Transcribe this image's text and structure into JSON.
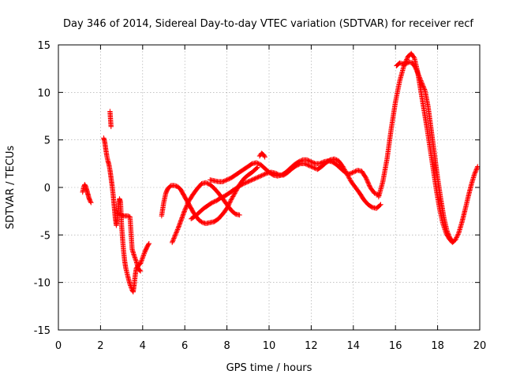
{
  "chart_data": {
    "type": "scatter",
    "title": "Day 346 of 2014, Sidereal Day-to-day VTEC variation (SDTVAR) for receiver recf",
    "xlabel": "GPS time / hours",
    "ylabel": "SDTVAR / TECUs",
    "xlim": [
      0,
      20
    ],
    "ylim": [
      -15,
      15
    ],
    "x_ticks": [
      0,
      2,
      4,
      6,
      8,
      10,
      12,
      14,
      16,
      18,
      20
    ],
    "y_ticks": [
      -15,
      -10,
      -5,
      0,
      5,
      10,
      15
    ],
    "x_tick_labels": [
      "0",
      "2",
      "4",
      "6",
      "8",
      "10",
      "12",
      "14",
      "16",
      "18",
      "20"
    ],
    "y_tick_labels": [
      "-15",
      "-10",
      "-5",
      "0",
      "5",
      "10",
      "15"
    ],
    "grid": true,
    "marker": "plus",
    "color": "#ff0000",
    "series": [
      {
        "name": "s1",
        "points": [
          [
            1.15,
            -0.5
          ],
          [
            1.2,
            0.0
          ],
          [
            1.25,
            0.3
          ],
          [
            1.3,
            0.1
          ],
          [
            1.35,
            -0.3
          ],
          [
            1.4,
            -0.7
          ],
          [
            1.45,
            -1.1
          ],
          [
            1.5,
            -1.4
          ],
          [
            1.55,
            -1.6
          ]
        ]
      },
      {
        "name": "s2",
        "points": [
          [
            2.15,
            5.2
          ],
          [
            2.2,
            4.8
          ],
          [
            2.25,
            4.0
          ],
          [
            2.3,
            3.3
          ],
          [
            2.35,
            2.8
          ],
          [
            2.4,
            2.4
          ],
          [
            2.45,
            1.8
          ],
          [
            2.5,
            1.0
          ],
          [
            2.55,
            0.2
          ],
          [
            2.6,
            -0.8
          ],
          [
            2.65,
            -2.0
          ],
          [
            2.7,
            -3.2
          ],
          [
            2.75,
            -4.0
          ],
          [
            2.8,
            -3.2
          ],
          [
            2.85,
            -1.8
          ],
          [
            2.9,
            -1.2
          ],
          [
            2.95,
            -1.5
          ],
          [
            3.0,
            -4.0
          ],
          [
            3.05,
            -5.5
          ],
          [
            3.1,
            -6.8
          ],
          [
            3.15,
            -7.8
          ],
          [
            3.2,
            -8.5
          ],
          [
            3.3,
            -9.4
          ],
          [
            3.4,
            -10.2
          ],
          [
            3.5,
            -10.8
          ],
          [
            3.55,
            -11.0
          ],
          [
            3.6,
            -10.2
          ],
          [
            3.65,
            -9.2
          ],
          [
            3.7,
            -8.5
          ],
          [
            3.8,
            -8.2
          ],
          [
            3.9,
            -8.0
          ],
          [
            4.0,
            -7.4
          ],
          [
            4.1,
            -6.8
          ],
          [
            4.2,
            -6.3
          ],
          [
            4.3,
            -5.9
          ]
        ]
      },
      {
        "name": "s3",
        "points": [
          [
            2.45,
            8.0
          ],
          [
            2.48,
            7.0
          ],
          [
            2.5,
            6.4
          ]
        ]
      },
      {
        "name": "s4",
        "points": [
          [
            2.8,
            -2.7
          ],
          [
            2.9,
            -2.8
          ],
          [
            3.0,
            -2.9
          ],
          [
            3.1,
            -3.0
          ],
          [
            3.2,
            -3.0
          ],
          [
            3.3,
            -3.0
          ],
          [
            3.4,
            -3.1
          ],
          [
            3.5,
            -6.5
          ],
          [
            3.6,
            -7.2
          ],
          [
            3.7,
            -7.8
          ],
          [
            3.8,
            -8.6
          ],
          [
            3.9,
            -8.8
          ]
        ]
      },
      {
        "name": "s5",
        "points": [
          [
            4.9,
            -3.0
          ],
          [
            5.0,
            -1.6
          ],
          [
            5.1,
            -0.6
          ],
          [
            5.2,
            -0.1
          ],
          [
            5.35,
            0.2
          ],
          [
            5.5,
            0.2
          ],
          [
            5.65,
            0.1
          ],
          [
            5.8,
            -0.2
          ],
          [
            5.95,
            -0.8
          ],
          [
            6.1,
            -1.4
          ],
          [
            6.25,
            -2.0
          ],
          [
            6.4,
            -2.6
          ],
          [
            6.55,
            -3.1
          ],
          [
            6.7,
            -3.5
          ],
          [
            6.85,
            -3.7
          ],
          [
            7.0,
            -3.8
          ],
          [
            7.2,
            -3.7
          ],
          [
            7.4,
            -3.6
          ],
          [
            7.6,
            -3.3
          ],
          [
            7.8,
            -2.8
          ],
          [
            8.0,
            -2.2
          ],
          [
            8.2,
            -1.3
          ],
          [
            8.4,
            -0.5
          ],
          [
            8.6,
            0.3
          ],
          [
            8.8,
            0.9
          ],
          [
            9.0,
            1.3
          ],
          [
            9.2,
            1.6
          ],
          [
            9.35,
            1.9
          ],
          [
            9.45,
            2.1
          ]
        ]
      },
      {
        "name": "s6",
        "points": [
          [
            5.4,
            -5.8
          ],
          [
            5.55,
            -5.0
          ],
          [
            5.7,
            -4.2
          ],
          [
            5.85,
            -3.3
          ],
          [
            6.0,
            -2.4
          ],
          [
            6.2,
            -1.4
          ],
          [
            6.4,
            -0.7
          ],
          [
            6.6,
            -0.1
          ],
          [
            6.8,
            0.4
          ],
          [
            7.0,
            0.5
          ],
          [
            7.2,
            0.3
          ],
          [
            7.4,
            -0.1
          ],
          [
            7.6,
            -0.6
          ],
          [
            7.8,
            -1.2
          ],
          [
            8.0,
            -1.8
          ],
          [
            8.2,
            -2.4
          ],
          [
            8.4,
            -2.8
          ],
          [
            8.6,
            -2.9
          ]
        ]
      },
      {
        "name": "s7",
        "points": [
          [
            6.3,
            -3.3
          ],
          [
            6.5,
            -3.0
          ],
          [
            6.7,
            -2.6
          ],
          [
            6.9,
            -2.2
          ],
          [
            7.1,
            -1.9
          ],
          [
            7.3,
            -1.6
          ],
          [
            7.5,
            -1.4
          ],
          [
            7.7,
            -1.1
          ],
          [
            7.9,
            -0.9
          ],
          [
            8.1,
            -0.6
          ],
          [
            8.3,
            -0.3
          ],
          [
            8.5,
            -0.0
          ],
          [
            8.7,
            0.3
          ],
          [
            8.9,
            0.5
          ],
          [
            9.1,
            0.7
          ],
          [
            9.3,
            0.9
          ],
          [
            9.5,
            1.1
          ],
          [
            9.7,
            1.3
          ],
          [
            9.9,
            1.5
          ],
          [
            10.1,
            1.6
          ],
          [
            10.3,
            1.5
          ],
          [
            10.5,
            1.3
          ],
          [
            10.7,
            1.3
          ],
          [
            10.9,
            1.6
          ],
          [
            11.1,
            2.0
          ],
          [
            11.3,
            2.3
          ],
          [
            11.5,
            2.5
          ],
          [
            11.7,
            2.5
          ],
          [
            11.9,
            2.3
          ],
          [
            12.1,
            2.1
          ],
          [
            12.3,
            1.9
          ],
          [
            12.5,
            2.2
          ],
          [
            12.7,
            2.6
          ],
          [
            12.9,
            2.9
          ],
          [
            13.1,
            3.0
          ],
          [
            13.3,
            2.8
          ],
          [
            13.5,
            2.2
          ],
          [
            13.7,
            1.4
          ],
          [
            13.9,
            0.6
          ],
          [
            14.1,
            0.0
          ],
          [
            14.3,
            -0.6
          ],
          [
            14.5,
            -1.3
          ],
          [
            14.7,
            -1.8
          ],
          [
            14.9,
            -2.1
          ],
          [
            15.1,
            -2.2
          ],
          [
            15.3,
            -1.8
          ]
        ]
      },
      {
        "name": "s8",
        "points": [
          [
            7.2,
            0.8
          ],
          [
            7.4,
            0.7
          ],
          [
            7.6,
            0.6
          ],
          [
            7.8,
            0.6
          ],
          [
            8.0,
            0.8
          ],
          [
            8.2,
            1.0
          ],
          [
            8.4,
            1.3
          ],
          [
            8.6,
            1.6
          ],
          [
            8.8,
            1.9
          ],
          [
            9.0,
            2.2
          ],
          [
            9.2,
            2.5
          ],
          [
            9.4,
            2.6
          ],
          [
            9.6,
            2.4
          ],
          [
            9.8,
            2.0
          ],
          [
            10.0,
            1.6
          ],
          [
            10.2,
            1.3
          ],
          [
            10.4,
            1.2
          ],
          [
            10.6,
            1.3
          ],
          [
            10.8,
            1.6
          ],
          [
            11.0,
            2.0
          ],
          [
            11.2,
            2.4
          ],
          [
            11.4,
            2.7
          ],
          [
            11.6,
            2.9
          ],
          [
            11.8,
            2.9
          ],
          [
            12.0,
            2.7
          ],
          [
            12.2,
            2.5
          ],
          [
            12.4,
            2.5
          ],
          [
            12.6,
            2.7
          ],
          [
            12.8,
            2.8
          ],
          [
            13.0,
            2.7
          ],
          [
            13.2,
            2.4
          ],
          [
            13.4,
            2.0
          ],
          [
            13.6,
            1.6
          ],
          [
            13.8,
            1.4
          ],
          [
            14.0,
            1.6
          ],
          [
            14.2,
            1.8
          ],
          [
            14.4,
            1.7
          ],
          [
            14.6,
            1.0
          ],
          [
            14.8,
            0.0
          ],
          [
            15.0,
            -0.6
          ],
          [
            15.2,
            -0.8
          ]
        ]
      },
      {
        "name": "s9",
        "points": [
          [
            9.55,
            3.3
          ],
          [
            9.65,
            3.6
          ],
          [
            9.75,
            3.4
          ],
          [
            9.8,
            3.2
          ]
        ]
      },
      {
        "name": "s10",
        "points": [
          [
            15.2,
            -1.0
          ],
          [
            15.4,
            0.6
          ],
          [
            15.6,
            3.0
          ],
          [
            15.8,
            6.2
          ],
          [
            16.0,
            9.0
          ],
          [
            16.2,
            11.2
          ],
          [
            16.4,
            12.8
          ],
          [
            16.6,
            13.8
          ],
          [
            16.75,
            14.1
          ],
          [
            16.9,
            13.6
          ],
          [
            17.05,
            12.2
          ],
          [
            17.2,
            10.2
          ],
          [
            17.35,
            8.2
          ],
          [
            17.5,
            6.2
          ],
          [
            17.65,
            4.0
          ],
          [
            17.8,
            1.8
          ],
          [
            17.95,
            -0.4
          ],
          [
            18.1,
            -2.3
          ],
          [
            18.25,
            -3.8
          ],
          [
            18.4,
            -4.8
          ],
          [
            18.55,
            -5.4
          ],
          [
            18.7,
            -5.8
          ],
          [
            18.85,
            -5.5
          ],
          [
            19.0,
            -4.8
          ],
          [
            19.15,
            -3.7
          ],
          [
            19.3,
            -2.4
          ],
          [
            19.45,
            -1.0
          ],
          [
            19.6,
            0.3
          ],
          [
            19.75,
            1.4
          ],
          [
            19.9,
            2.2
          ]
        ]
      },
      {
        "name": "s11",
        "points": [
          [
            16.05,
            12.8
          ],
          [
            16.2,
            13.1
          ],
          [
            16.35,
            13.0
          ],
          [
            16.5,
            13.0
          ],
          [
            16.65,
            13.2
          ],
          [
            16.8,
            13.1
          ],
          [
            16.95,
            12.6
          ],
          [
            17.1,
            11.8
          ],
          [
            17.25,
            11.0
          ],
          [
            17.4,
            10.2
          ],
          [
            17.55,
            8.5
          ],
          [
            17.7,
            6.0
          ],
          [
            17.85,
            3.5
          ],
          [
            18.0,
            1.0
          ],
          [
            18.15,
            -1.2
          ],
          [
            18.3,
            -3.2
          ],
          [
            18.45,
            -4.6
          ],
          [
            18.6,
            -5.4
          ],
          [
            18.75,
            -5.7
          ]
        ]
      }
    ]
  }
}
